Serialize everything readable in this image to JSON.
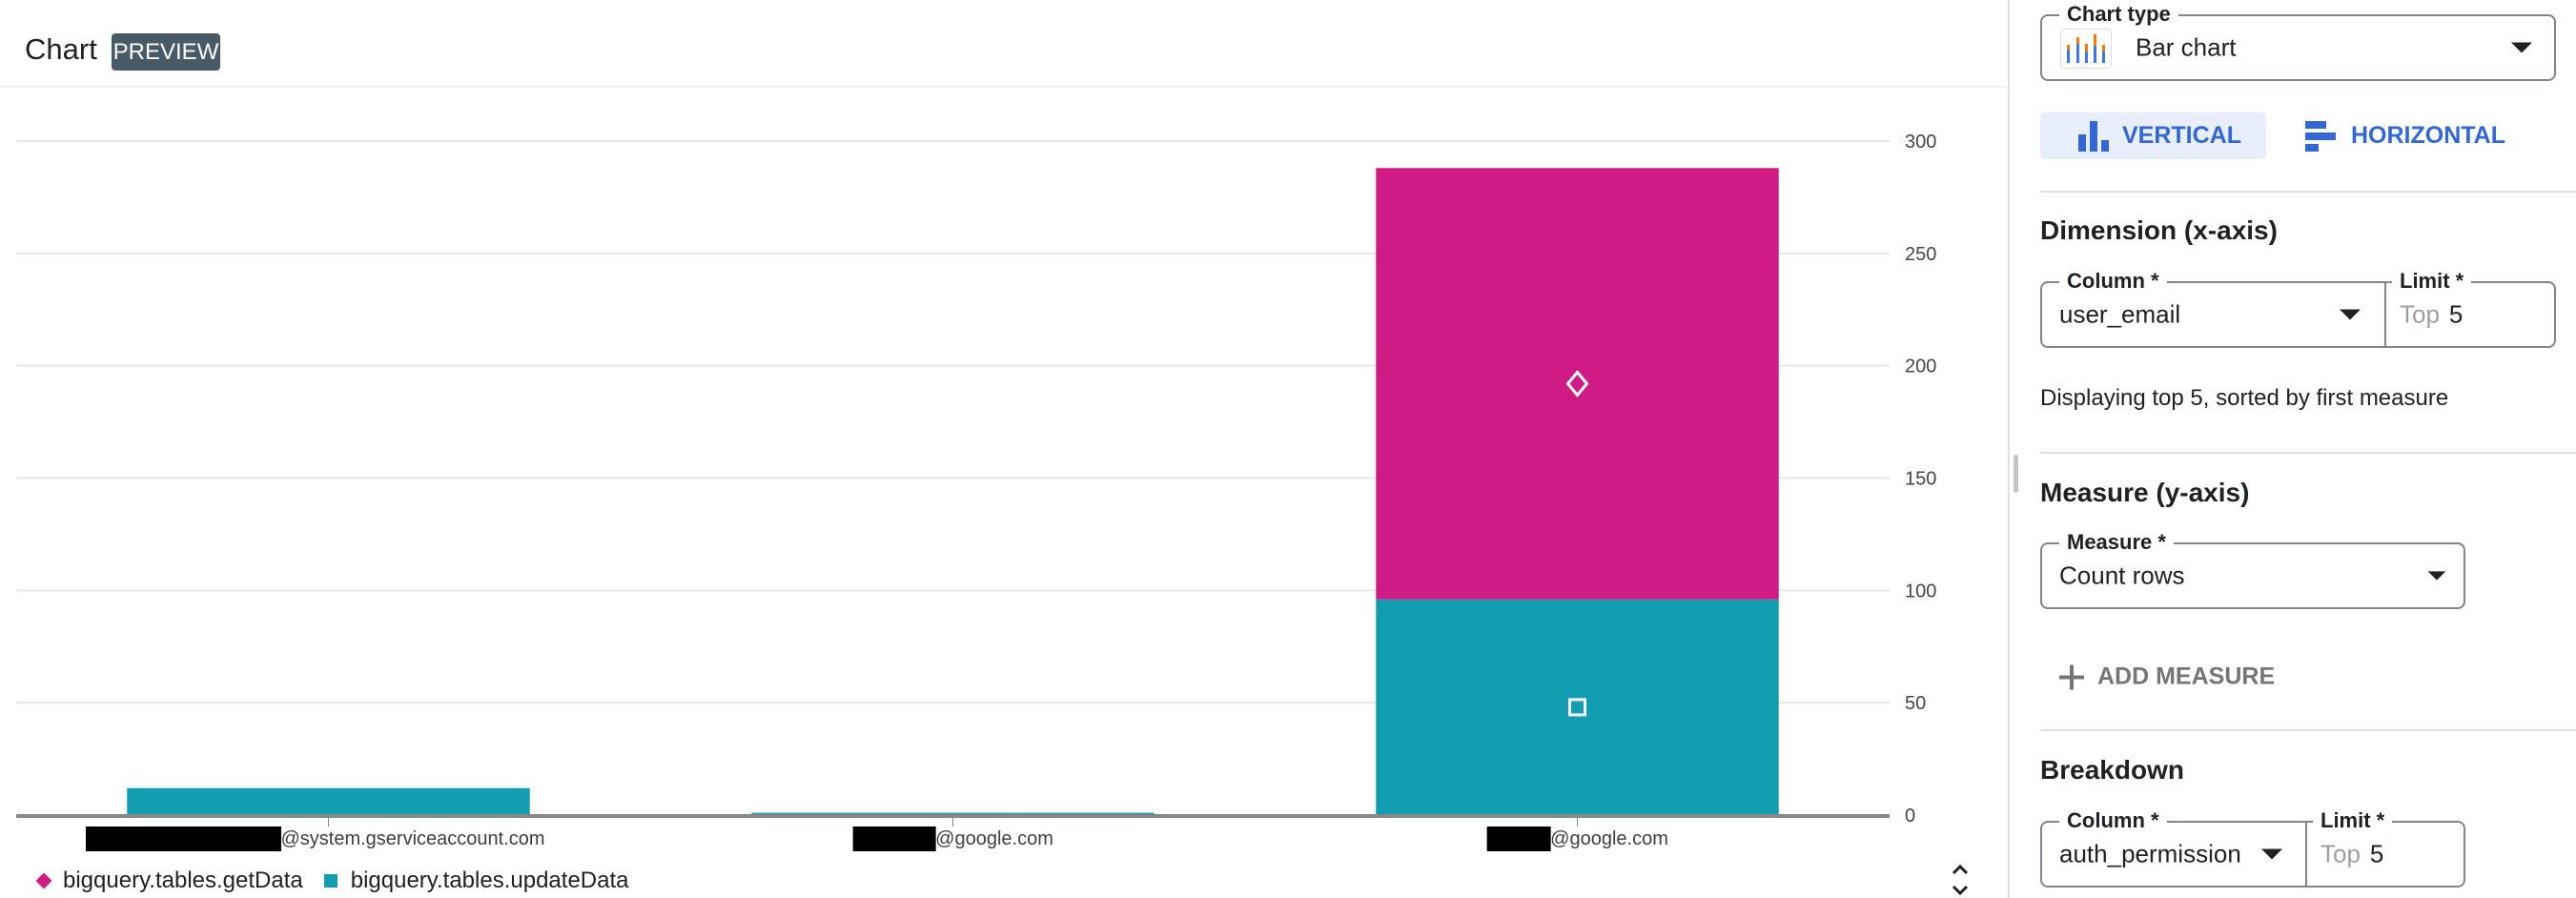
{
  "header": {
    "title": "Chart",
    "badge": "PREVIEW"
  },
  "colors": {
    "getData": "#d01a84",
    "updateData": "#129eb0",
    "accent": "#3367d6",
    "badge": "#475a66"
  },
  "chart_data": {
    "type": "bar",
    "stacked": true,
    "orientation": "vertical",
    "categories": [
      {
        "suffix": "@system.gserviceaccount.com",
        "redacted": true
      },
      {
        "suffix": "@google.com",
        "redacted": true
      },
      {
        "suffix": "@google.com",
        "redacted": true
      }
    ],
    "series": [
      {
        "name": "bigquery.tables.updateData",
        "values": [
          12,
          1,
          96
        ],
        "color": "#129eb0",
        "marker": "square"
      },
      {
        "name": "bigquery.tables.getData",
        "values": [
          0,
          0,
          192
        ],
        "color": "#d01a84",
        "marker": "diamond"
      }
    ],
    "legend_order": [
      "bigquery.tables.getData",
      "bigquery.tables.updateData"
    ],
    "yticks": [
      "0",
      "50",
      "100",
      "150",
      "200",
      "250",
      "300"
    ],
    "ylim": [
      0,
      300
    ],
    "y_axis_side": "right",
    "grid": true,
    "legend_position": "bottom-left"
  },
  "sidebar": {
    "chart_type": {
      "label": "Chart type",
      "value": "Bar chart",
      "icon": "bar-chart-icon"
    },
    "orientation": {
      "vertical": "VERTICAL",
      "horizontal": "HORIZONTAL",
      "selected": "vertical"
    },
    "dimension": {
      "title": "Dimension (x-axis)",
      "column_label": "Column *",
      "column_value": "user_email",
      "limit_label": "Limit *",
      "limit_prefix": "Top",
      "limit_value": "5",
      "helper": "Displaying top 5, sorted by first measure"
    },
    "measure": {
      "title": "Measure (y-axis)",
      "label": "Measure *",
      "value": "Count rows",
      "add_label": "ADD MEASURE"
    },
    "breakdown": {
      "title": "Breakdown",
      "column_label": "Column *",
      "column_value": "auth_permission",
      "limit_label": "Limit *",
      "limit_prefix": "Top",
      "limit_value": "5"
    }
  }
}
